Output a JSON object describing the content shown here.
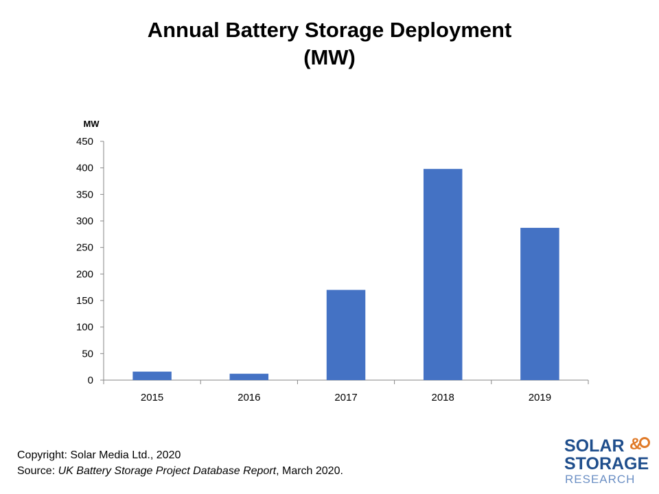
{
  "title": {
    "line1": "Annual Battery Storage Deployment",
    "line2": "(MW)"
  },
  "footer": {
    "copyright": "Copyright: Solar Media Ltd., 2020",
    "source_prefix": "Source: ",
    "source_title": "UK Battery Storage Project Database Report",
    "source_suffix": ", March 2020."
  },
  "logo": {
    "word1": "SOLAR",
    "amp": "&",
    "word2": "STORAGE",
    "word3": "RESEARCH"
  },
  "colors": {
    "bar": "#4472c4",
    "axis": "#868686",
    "logo_blue": "#1f4e8c",
    "logo_orange": "#e07a28"
  },
  "chart_data": {
    "type": "bar",
    "categories": [
      "2015",
      "2016",
      "2017",
      "2018",
      "2019"
    ],
    "values": [
      16,
      12,
      170,
      398,
      287
    ],
    "title": "Annual Battery Storage Deployment (MW)",
    "xlabel": "",
    "ylabel": "MW",
    "ylim": [
      0,
      450
    ],
    "yticks": [
      0,
      50,
      100,
      150,
      200,
      250,
      300,
      350,
      400,
      450
    ],
    "grid": false,
    "legend": "none"
  }
}
